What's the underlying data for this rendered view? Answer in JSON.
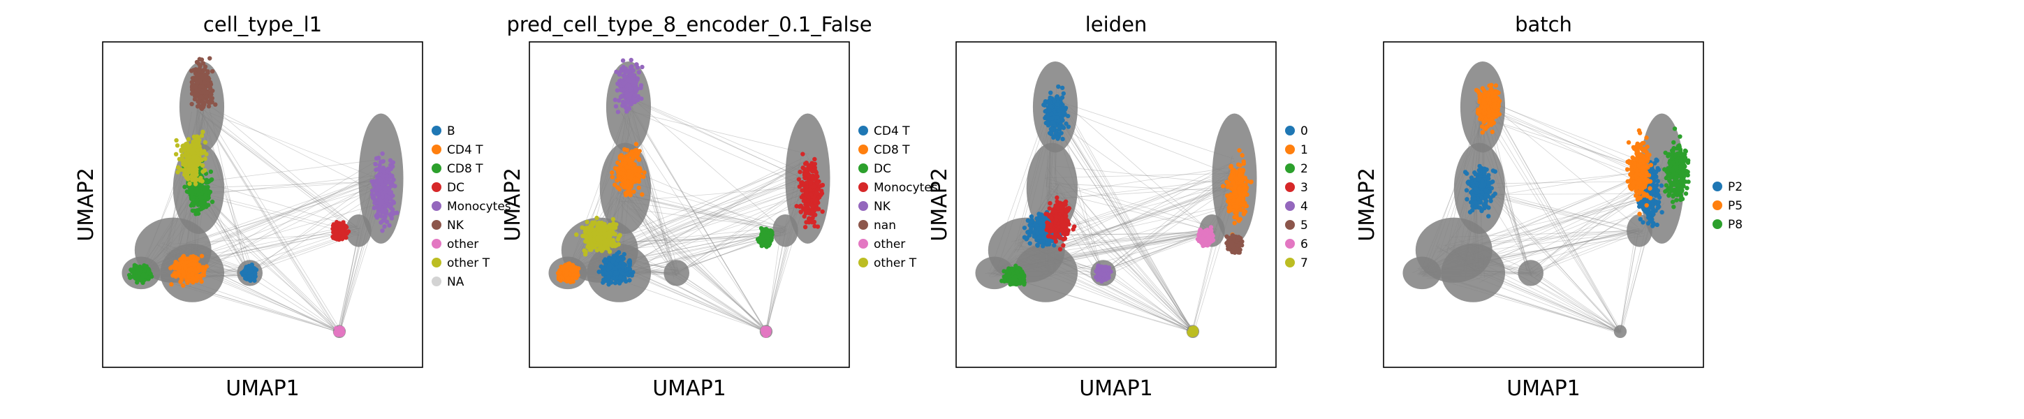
{
  "chart_data": [
    {
      "type": "scatter",
      "title": "cell_type_l1",
      "xlabel": "UMAP1",
      "ylabel": "UMAP2",
      "grid": false,
      "legend_position": "right",
      "categories": [
        "B",
        "CD4 T",
        "CD8 T",
        "DC",
        "Monocytes",
        "NK",
        "other",
        "other T",
        "NA"
      ],
      "colors": [
        "#1f77b4",
        "#ff7f0e",
        "#2ca02c",
        "#d62728",
        "#9467bd",
        "#8c564b",
        "#e377c2",
        "#bcbd22",
        "#d3d3d3"
      ],
      "clusters": [
        {
          "label": "NK",
          "x": 0.31,
          "y": 0.86
        },
        {
          "label": "CD8 T",
          "x": 0.3,
          "y": 0.55
        },
        {
          "label": "CD8 T",
          "x": 0.12,
          "y": 0.29
        },
        {
          "label": "CD4 T",
          "x": 0.27,
          "y": 0.3
        },
        {
          "label": "B",
          "x": 0.46,
          "y": 0.29
        },
        {
          "label": "Monocytes",
          "x": 0.88,
          "y": 0.54
        },
        {
          "label": "DC",
          "x": 0.74,
          "y": 0.42
        },
        {
          "label": "other",
          "x": 0.74,
          "y": 0.11
        },
        {
          "label": "other T",
          "x": 0.28,
          "y": 0.64
        }
      ]
    },
    {
      "type": "scatter",
      "title": "pred_cell_type_8_encoder_0.1_False",
      "xlabel": "UMAP1",
      "ylabel": "UMAP2",
      "grid": false,
      "legend_position": "right",
      "categories": [
        "CD4 T",
        "CD8 T",
        "DC",
        "Monocytes",
        "NK",
        "nan",
        "other",
        "other T"
      ],
      "colors": [
        "#1f77b4",
        "#ff7f0e",
        "#2ca02c",
        "#d62728",
        "#9467bd",
        "#8c564b",
        "#e377c2",
        "#bcbd22"
      ],
      "clusters": [
        {
          "label": "NK",
          "x": 0.31,
          "y": 0.86
        },
        {
          "label": "CD8 T",
          "x": 0.31,
          "y": 0.6
        },
        {
          "label": "CD8 T",
          "x": 0.12,
          "y": 0.29
        },
        {
          "label": "CD4 T",
          "x": 0.27,
          "y": 0.3
        },
        {
          "label": "other T",
          "x": 0.22,
          "y": 0.4
        },
        {
          "label": "Monocytes",
          "x": 0.88,
          "y": 0.54
        },
        {
          "label": "DC",
          "x": 0.74,
          "y": 0.4
        },
        {
          "label": "other",
          "x": 0.74,
          "y": 0.11
        }
      ]
    },
    {
      "type": "scatter",
      "title": "leiden",
      "xlabel": "UMAP1",
      "ylabel": "UMAP2",
      "grid": false,
      "legend_position": "right",
      "categories": [
        "0",
        "1",
        "2",
        "3",
        "4",
        "5",
        "6",
        "7"
      ],
      "colors": [
        "#1f77b4",
        "#ff7f0e",
        "#2ca02c",
        "#d62728",
        "#9467bd",
        "#8c564b",
        "#e377c2",
        "#bcbd22"
      ],
      "clusters": [
        {
          "label": "0",
          "x": 0.31,
          "y": 0.78
        },
        {
          "label": "0",
          "x": 0.28,
          "y": 0.42
        },
        {
          "label": "2",
          "x": 0.18,
          "y": 0.28
        },
        {
          "label": "1",
          "x": 0.88,
          "y": 0.54
        },
        {
          "label": "3",
          "x": 0.32,
          "y": 0.45
        },
        {
          "label": "4",
          "x": 0.46,
          "y": 0.29
        },
        {
          "label": "5",
          "x": 0.87,
          "y": 0.38
        },
        {
          "label": "6",
          "x": 0.78,
          "y": 0.4
        },
        {
          "label": "7",
          "x": 0.74,
          "y": 0.11
        }
      ]
    },
    {
      "type": "scatter",
      "title": "batch",
      "xlabel": "UMAP1",
      "ylabel": "UMAP2",
      "grid": false,
      "legend_position": "right",
      "categories": [
        "P2",
        "P5",
        "P8"
      ],
      "colors": [
        "#1f77b4",
        "#ff7f0e",
        "#2ca02c"
      ],
      "clusters": [
        {
          "label": "P2",
          "x": 0.3,
          "y": 0.55
        },
        {
          "label": "P5",
          "x": 0.33,
          "y": 0.8
        },
        {
          "label": "P2",
          "x": 0.83,
          "y": 0.54
        },
        {
          "label": "P5",
          "x": 0.8,
          "y": 0.6
        },
        {
          "label": "P8",
          "x": 0.92,
          "y": 0.6
        }
      ]
    }
  ]
}
